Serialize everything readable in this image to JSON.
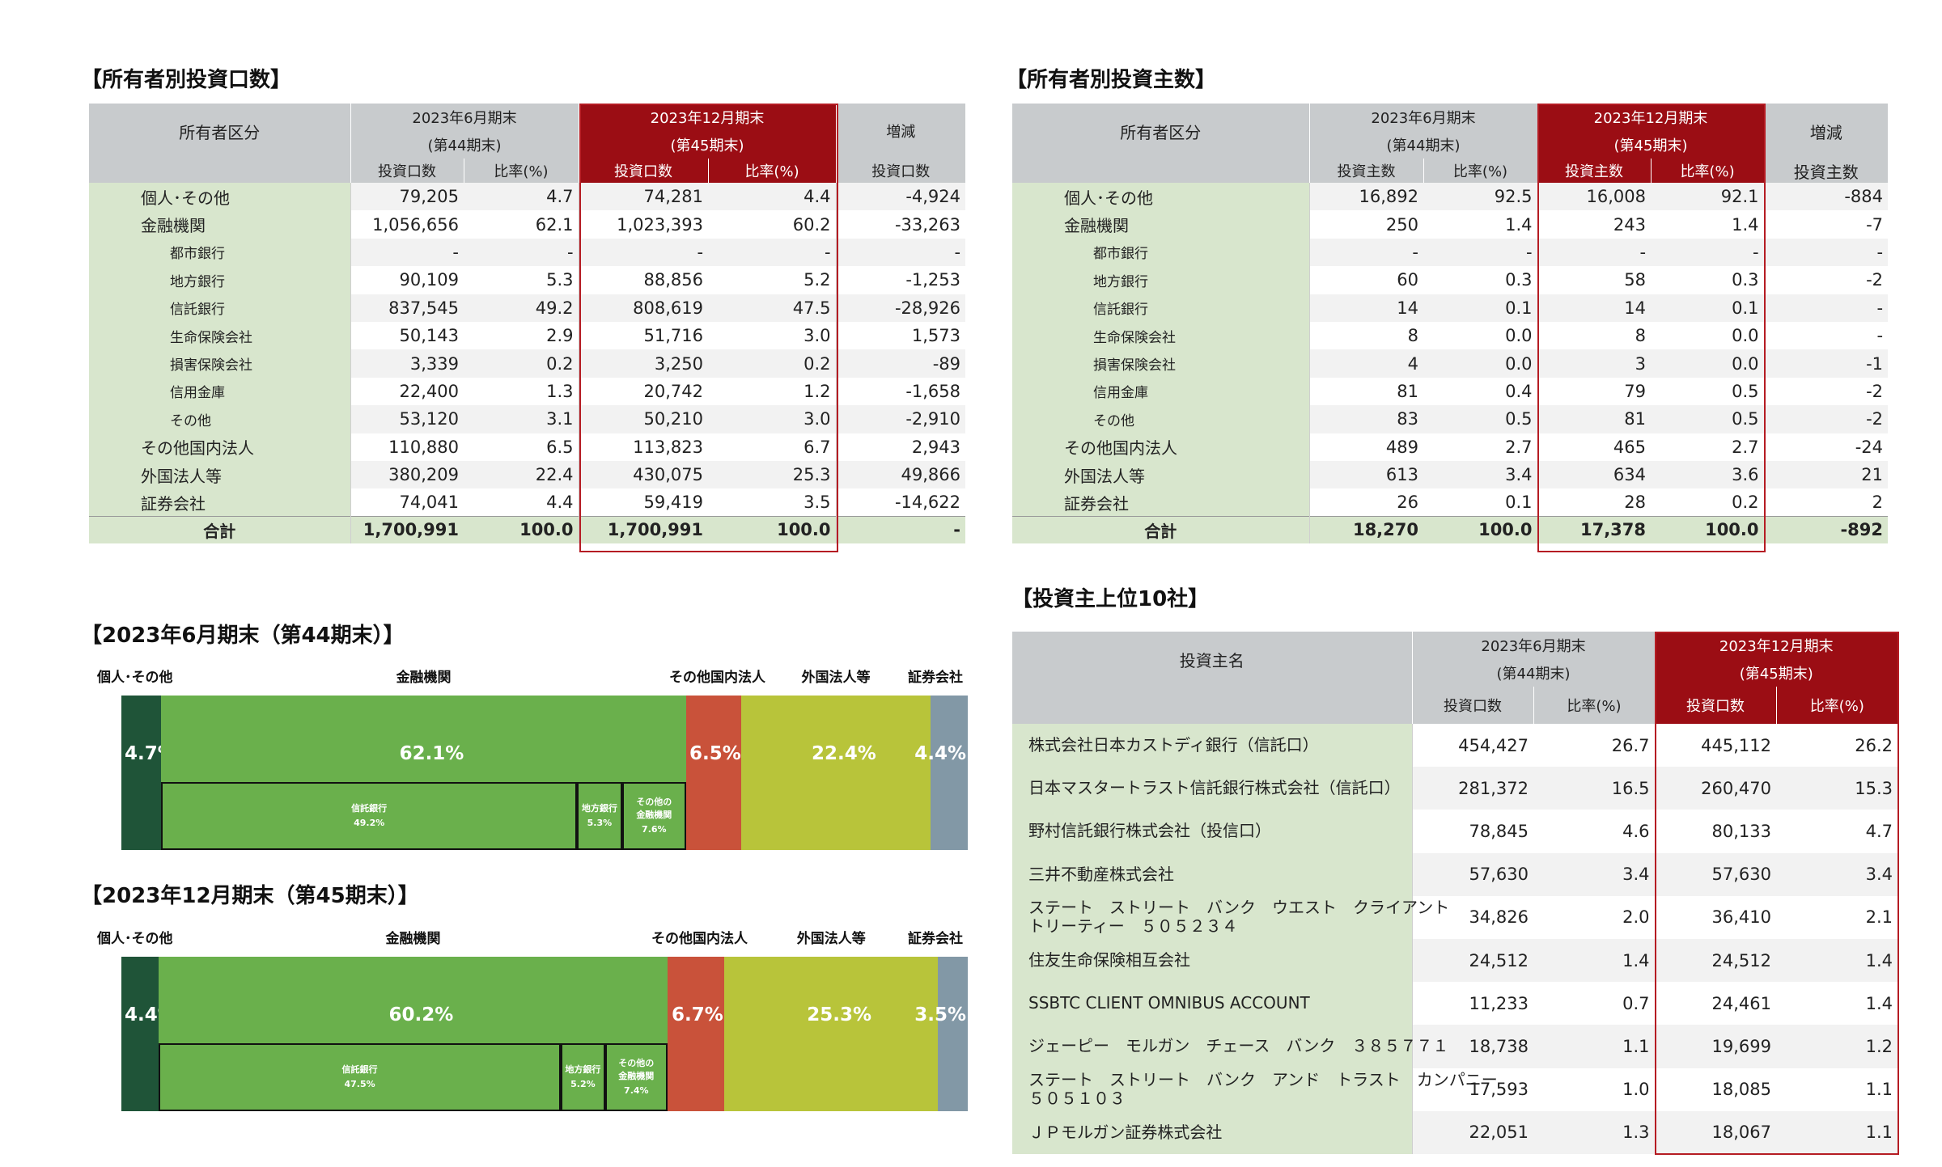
{
  "units_table": {
    "title": "【所有者別投資口数】",
    "header": {
      "category": "所有者区分",
      "prev_period": "2023年6月期末",
      "prev_period_sub": "(第44期末)",
      "curr_period": "2023年12月期末",
      "curr_period_sub": "(第45期末)",
      "change": "増減",
      "col_units": "投資口数",
      "col_ratio": "比率(%)"
    },
    "rows": [
      {
        "label": "個人･その他",
        "prev": "79,205",
        "prev_r": "4.7",
        "curr": "74,281",
        "curr_r": "4.4",
        "chg": "-4,924"
      },
      {
        "label": "金融機関",
        "prev": "1,056,656",
        "prev_r": "62.1",
        "curr": "1,023,393",
        "curr_r": "60.2",
        "chg": "-33,263"
      },
      {
        "label": "都市銀行",
        "prev": "-",
        "prev_r": "-",
        "curr": "-",
        "curr_r": "-",
        "chg": "-"
      },
      {
        "label": "地方銀行",
        "prev": "90,109",
        "prev_r": "5.3",
        "curr": "88,856",
        "curr_r": "5.2",
        "chg": "-1,253"
      },
      {
        "label": "信託銀行",
        "prev": "837,545",
        "prev_r": "49.2",
        "curr": "808,619",
        "curr_r": "47.5",
        "chg": "-28,926"
      },
      {
        "label": "生命保険会社",
        "prev": "50,143",
        "prev_r": "2.9",
        "curr": "51,716",
        "curr_r": "3.0",
        "chg": "1,573"
      },
      {
        "label": "損害保険会社",
        "prev": "3,339",
        "prev_r": "0.2",
        "curr": "3,250",
        "curr_r": "0.2",
        "chg": "-89"
      },
      {
        "label": "信用金庫",
        "prev": "22,400",
        "prev_r": "1.3",
        "curr": "20,742",
        "curr_r": "1.2",
        "chg": "-1,658"
      },
      {
        "label": "その他",
        "prev": "53,120",
        "prev_r": "3.1",
        "curr": "50,210",
        "curr_r": "3.0",
        "chg": "-2,910"
      },
      {
        "label": "その他国内法人",
        "prev": "110,880",
        "prev_r": "6.5",
        "curr": "113,823",
        "curr_r": "6.7",
        "chg": "2,943"
      },
      {
        "label": "外国法人等",
        "prev": "380,209",
        "prev_r": "22.4",
        "curr": "430,075",
        "curr_r": "25.3",
        "chg": "49,866"
      },
      {
        "label": "証券会社",
        "prev": "74,041",
        "prev_r": "4.4",
        "curr": "59,419",
        "curr_r": "3.5",
        "chg": "-14,622"
      }
    ],
    "total": {
      "label": "合計",
      "prev": "1,700,991",
      "prev_r": "100.0",
      "curr": "1,700,991",
      "curr_r": "100.0",
      "chg": "-"
    }
  },
  "holders_table": {
    "title": "【所有者別投資主数】",
    "header": {
      "category": "所有者区分",
      "prev_period": "2023年6月期末",
      "prev_period_sub": "(第44期末)",
      "curr_period": "2023年12月期末",
      "curr_period_sub": "(第45期末)",
      "change": "増減",
      "col_holders": "投資主数",
      "col_ratio": "比率(%)"
    },
    "rows": [
      {
        "label": "個人･その他",
        "prev": "16,892",
        "prev_r": "92.5",
        "curr": "16,008",
        "curr_r": "92.1",
        "chg": "-884"
      },
      {
        "label": "金融機関",
        "prev": "250",
        "prev_r": "1.4",
        "curr": "243",
        "curr_r": "1.4",
        "chg": "-7"
      },
      {
        "label": "都市銀行",
        "prev": "-",
        "prev_r": "-",
        "curr": "-",
        "curr_r": "-",
        "chg": "-"
      },
      {
        "label": "地方銀行",
        "prev": "60",
        "prev_r": "0.3",
        "curr": "58",
        "curr_r": "0.3",
        "chg": "-2"
      },
      {
        "label": "信託銀行",
        "prev": "14",
        "prev_r": "0.1",
        "curr": "14",
        "curr_r": "0.1",
        "chg": "-"
      },
      {
        "label": "生命保険会社",
        "prev": "8",
        "prev_r": "0.0",
        "curr": "8",
        "curr_r": "0.0",
        "chg": "-"
      },
      {
        "label": "損害保険会社",
        "prev": "4",
        "prev_r": "0.0",
        "curr": "3",
        "curr_r": "0.0",
        "chg": "-1"
      },
      {
        "label": "信用金庫",
        "prev": "81",
        "prev_r": "0.4",
        "curr": "79",
        "curr_r": "0.5",
        "chg": "-2"
      },
      {
        "label": "その他",
        "prev": "83",
        "prev_r": "0.5",
        "curr": "81",
        "curr_r": "0.5",
        "chg": "-2"
      },
      {
        "label": "その他国内法人",
        "prev": "489",
        "prev_r": "2.7",
        "curr": "465",
        "curr_r": "2.7",
        "chg": "-24"
      },
      {
        "label": "外国法人等",
        "prev": "613",
        "prev_r": "3.4",
        "curr": "634",
        "curr_r": "3.6",
        "chg": "21"
      },
      {
        "label": "証券会社",
        "prev": "26",
        "prev_r": "0.1",
        "curr": "28",
        "curr_r": "0.2",
        "chg": "2"
      }
    ],
    "total": {
      "label": "合計",
      "prev": "18,270",
      "prev_r": "100.0",
      "curr": "17,378",
      "curr_r": "100.0",
      "chg": "-892"
    }
  },
  "top10_table": {
    "title": "【投資主上位10社】",
    "header": {
      "name": "投資主名",
      "prev_period": "2023年6月期末",
      "prev_period_sub": "(第44期末)",
      "curr_period": "2023年12月期末",
      "curr_period_sub": "(第45期末)",
      "col_units": "投資口数",
      "col_ratio": "比率(%)"
    },
    "rows": [
      {
        "name": "株式会社日本カストディ銀行（信託口）",
        "name2": "",
        "prev": "454,427",
        "prev_r": "26.7",
        "curr": "445,112",
        "curr_r": "26.2"
      },
      {
        "name": "日本マスタートラスト信託銀行株式会社（信託口）",
        "name2": "",
        "prev": "281,372",
        "prev_r": "16.5",
        "curr": "260,470",
        "curr_r": "15.3"
      },
      {
        "name": "野村信託銀行株式会社（投信口）",
        "name2": "",
        "prev": "78,845",
        "prev_r": "4.6",
        "curr": "80,133",
        "curr_r": "4.7"
      },
      {
        "name": "三井不動産株式会社",
        "name2": "",
        "prev": "57,630",
        "prev_r": "3.4",
        "curr": "57,630",
        "curr_r": "3.4"
      },
      {
        "name": "ステート　ストリート　バンク　ウエスト　クライアント",
        "name2": "トリーティー　５０５２３４",
        "prev": "34,826",
        "prev_r": "2.0",
        "curr": "36,410",
        "curr_r": "2.1"
      },
      {
        "name": "住友生命保険相互会社",
        "name2": "",
        "prev": "24,512",
        "prev_r": "1.4",
        "curr": "24,512",
        "curr_r": "1.4"
      },
      {
        "name": "SSBTC CLIENT OMNIBUS ACCOUNT",
        "name2": "",
        "prev": "11,233",
        "prev_r": "0.7",
        "curr": "24,461",
        "curr_r": "1.4"
      },
      {
        "name": "ジェーピー　モルガン　チェース　バンク　３８５７７１",
        "name2": "",
        "prev": "18,738",
        "prev_r": "1.1",
        "curr": "19,699",
        "curr_r": "1.2"
      },
      {
        "name": "ステート　ストリート　バンク　アンド　トラスト　カンパニー",
        "name2": "５０５１０３",
        "prev": "17,593",
        "prev_r": "1.0",
        "curr": "18,085",
        "curr_r": "1.1"
      },
      {
        "name": "ＪＰモルガン証券株式会社",
        "name2": "",
        "prev": "22,051",
        "prev_r": "1.3",
        "curr": "18,067",
        "curr_r": "1.1"
      }
    ]
  },
  "chart_data": [
    {
      "type": "bar",
      "orientation": "horizontal-stacked-100",
      "title": "【2023年6月期末（第44期末）】",
      "categories": [
        "個人･その他",
        "金融機関",
        "その他国内法人",
        "外国法人等",
        "証券会社"
      ],
      "values": [
        4.7,
        62.1,
        6.5,
        22.4,
        4.4
      ],
      "labels": [
        "4.7%",
        "62.1%",
        "6.5%",
        "22.4%",
        "4.4%"
      ],
      "colors": [
        "#1f5438",
        "#6ab04c",
        "#c9523a",
        "#b8c43a",
        "#8298a6"
      ],
      "breakdown": [
        {
          "name": "信託銀行",
          "value": 49.2,
          "label": "49.2%"
        },
        {
          "name": "地方銀行",
          "value": 5.3,
          "label": "5.3%"
        },
        {
          "name": "その他の金融機関",
          "value": 7.6,
          "label": "7.6%"
        }
      ]
    },
    {
      "type": "bar",
      "orientation": "horizontal-stacked-100",
      "title": "【2023年12月期末（第45期末）】",
      "categories": [
        "個人･その他",
        "金融機関",
        "その他国内法人",
        "外国法人等",
        "証券会社"
      ],
      "values": [
        4.4,
        60.2,
        6.7,
        25.3,
        3.5
      ],
      "labels": [
        "4.4%",
        "60.2%",
        "6.7%",
        "25.3%",
        "3.5%"
      ],
      "colors": [
        "#1f5438",
        "#6ab04c",
        "#c9523a",
        "#b8c43a",
        "#8298a6"
      ],
      "breakdown": [
        {
          "name": "信託銀行",
          "value": 47.5,
          "label": "47.5%"
        },
        {
          "name": "地方銀行",
          "value": 5.2,
          "label": "5.2%"
        },
        {
          "name": "その他の金融機関",
          "value": 7.4,
          "label": "7.4%"
        }
      ]
    }
  ]
}
